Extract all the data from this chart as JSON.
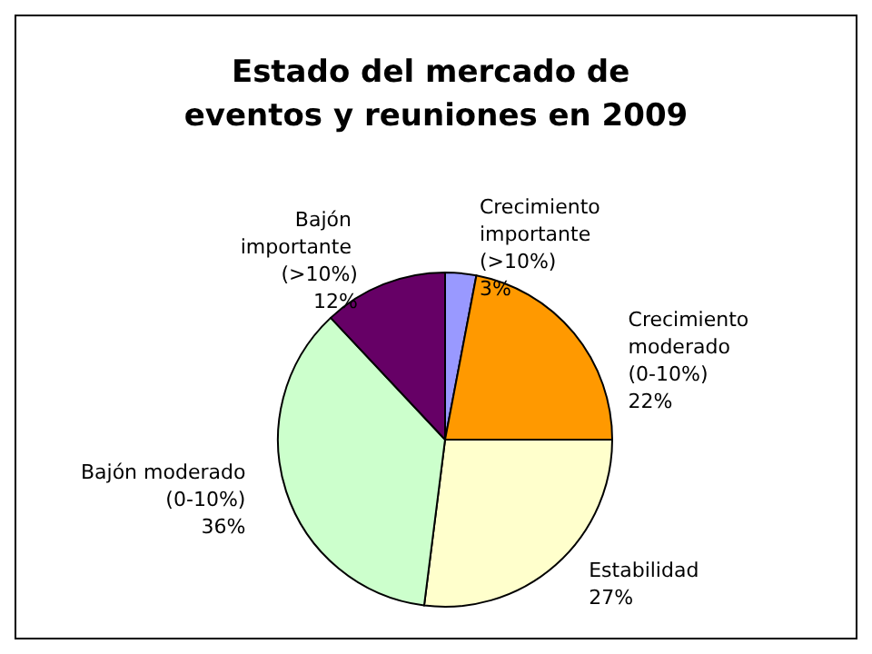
{
  "chart_data": {
    "type": "pie",
    "title": "Estado del mercado de eventos y reuniones en 2009",
    "categories": [
      "Crecimiento importante (>10%)",
      "Crecimiento moderado (0-10%)",
      "Estabilidad",
      "Bajón moderado (0-10%)",
      "Bajón importante (>10%)"
    ],
    "values": [
      3,
      22,
      27,
      36,
      12
    ],
    "value_labels": [
      "3%",
      "22%",
      "27%",
      "36%",
      "12%"
    ],
    "colors": [
      "#9999ff",
      "#ff9900",
      "#ffffcc",
      "#ccffcc",
      "#660066"
    ],
    "legend": false
  }
}
